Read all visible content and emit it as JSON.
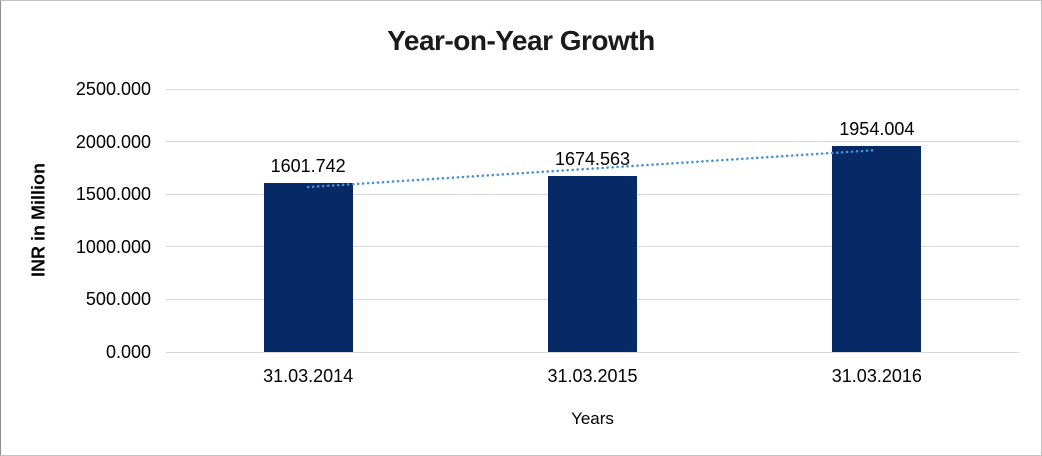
{
  "chart_data": {
    "type": "bar",
    "title": "Year-on-Year Growth",
    "xlabel": "Years",
    "ylabel": "INR in Million",
    "categories": [
      "31.03.2014",
      "31.03.2015",
      "31.03.2016"
    ],
    "series": [
      {
        "name": "INR in Million",
        "values": [
          1601.742,
          1674.563,
          1954.004
        ]
      }
    ],
    "data_labels": [
      "1601.742",
      "1674.563",
      "1954.004"
    ],
    "ylim": [
      0,
      2500
    ],
    "y_ticks": [
      0,
      500,
      1000,
      1500,
      2000,
      2500
    ],
    "y_tick_labels": [
      "0.000",
      "500.000",
      "1000.000",
      "1500.000",
      "2000.000",
      "2500.000"
    ],
    "grid": true,
    "legend": "none",
    "bar_color": "#062A66",
    "gridline_color": "#D9D9D9",
    "trendline": {
      "type": "linear",
      "style": "dotted",
      "color": "#4A90D4"
    }
  }
}
